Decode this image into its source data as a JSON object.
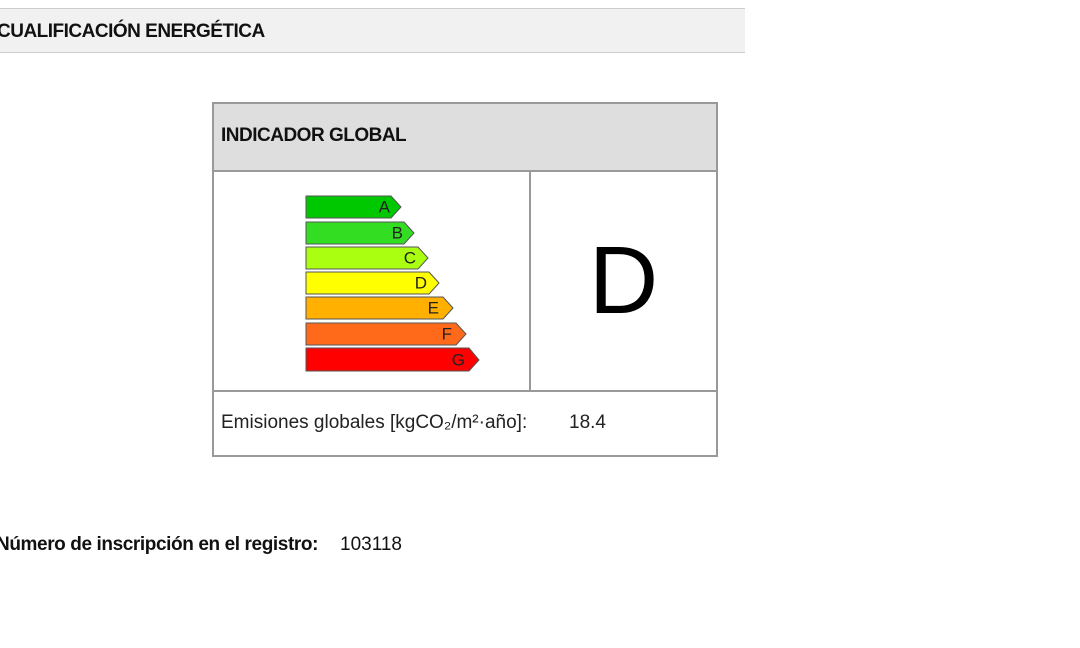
{
  "section_title": "CUALIFICACIÓN ENERGÉTICA",
  "indicator": {
    "title": "INDICADOR GLOBAL",
    "scale": [
      "A",
      "B",
      "C",
      "D",
      "E",
      "F",
      "G"
    ],
    "rating": "D",
    "emissions_label": "Emisiones globales [kgCO₂/m²·año]:",
    "emissions_value": "18.4"
  },
  "registration": {
    "label": "Número de inscripción en el registro:",
    "value": "103118"
  }
}
